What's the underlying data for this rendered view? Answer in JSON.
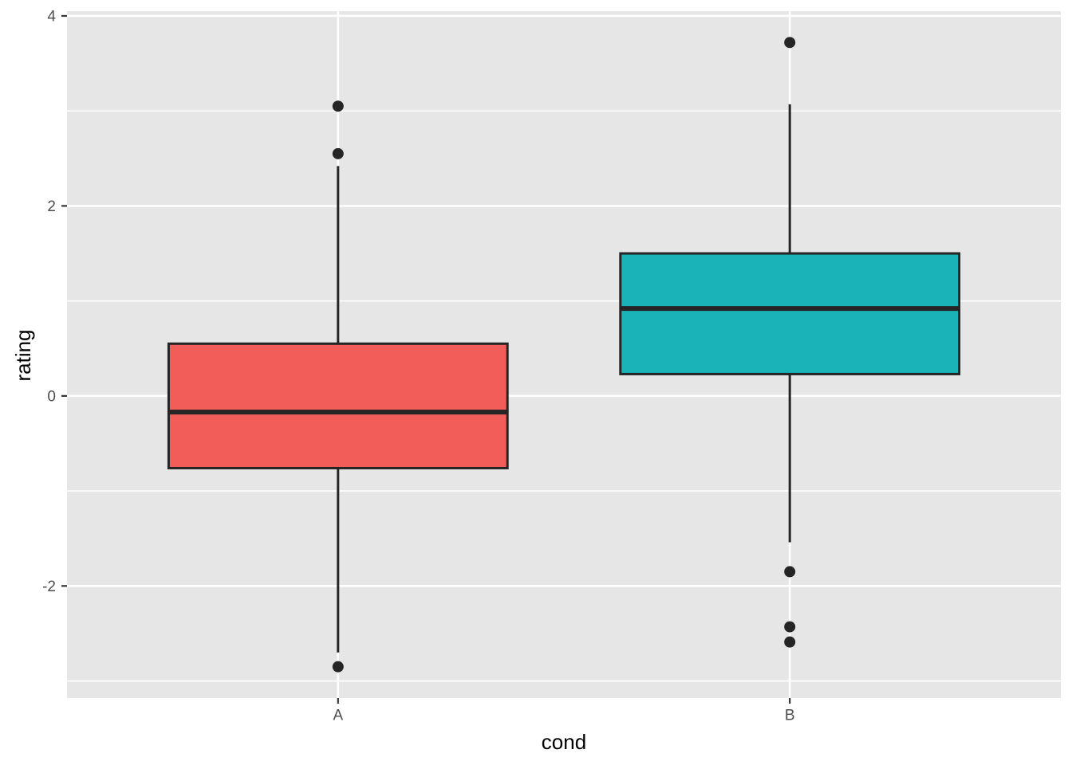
{
  "figure": {
    "background": "#FFFFFF",
    "panel_background": "#E6E6E6",
    "grid_color": "#FFFFFF",
    "tick_color": "#333333",
    "tick_label_color": "#4D4D4D",
    "box_stroke_color": "#252525",
    "outlier_color": "#252525"
  },
  "chart_data": {
    "type": "boxplot",
    "title": "",
    "xlabel": "cond",
    "ylabel": "rating",
    "categories": [
      "A",
      "B"
    ],
    "x_tick_labels": [
      "A",
      "B"
    ],
    "y_axis": {
      "major_ticks": [
        -2,
        0,
        2,
        4
      ],
      "major_tick_labels": [
        "-2",
        "0",
        "2",
        "4"
      ],
      "minor_ticks": [
        -3,
        -1,
        1,
        3
      ],
      "domain": [
        -3.18,
        4.05
      ]
    },
    "grid": true,
    "legend": "none",
    "series": [
      {
        "label": "A",
        "fill": "#F25D59",
        "lower_whisker": -2.7,
        "q1": -0.76,
        "median": -0.17,
        "q3": 0.55,
        "upper_whisker": 2.42,
        "outliers": [
          3.05,
          2.55,
          -2.85
        ]
      },
      {
        "label": "B",
        "fill": "#1AB3B7",
        "lower_whisker": -1.54,
        "q1": 0.23,
        "median": 0.92,
        "q3": 1.5,
        "upper_whisker": 3.07,
        "outliers": [
          3.72,
          -1.85,
          -2.43,
          -2.59
        ]
      }
    ]
  }
}
